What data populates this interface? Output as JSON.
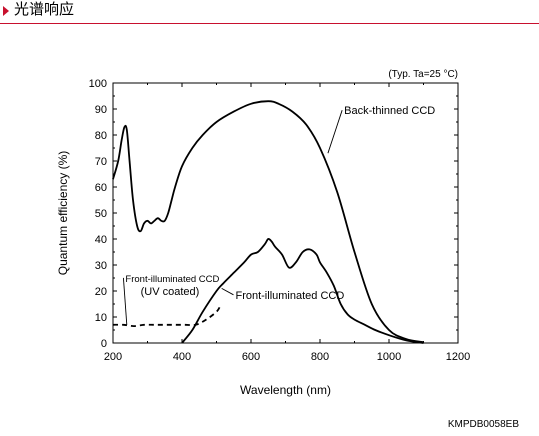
{
  "header": {
    "title": "光谱响应",
    "accent_color": "#c8102e"
  },
  "figure_code": "KMPDB0058EB",
  "chart_data": {
    "type": "line",
    "title": "",
    "condition_note": "(Typ. Ta=25 °C)",
    "xlabel": "Wavelength (nm)",
    "ylabel": "Quantum efficiency (%)",
    "xlim": [
      200,
      1200
    ],
    "ylim": [
      0,
      100
    ],
    "x_ticks": [
      200,
      400,
      600,
      800,
      1000,
      1200
    ],
    "y_ticks": [
      0,
      10,
      20,
      30,
      40,
      50,
      60,
      70,
      80,
      90,
      100
    ],
    "grid": false,
    "series": [
      {
        "name": "Back-thinned CCD",
        "style": "solid",
        "x": [
          200,
          215,
          225,
          233,
          240,
          248,
          258,
          270,
          280,
          290,
          300,
          310,
          320,
          330,
          340,
          350,
          360,
          370,
          380,
          400,
          430,
          460,
          500,
          550,
          600,
          650,
          680,
          720,
          760,
          800,
          850,
          900,
          950,
          1000,
          1050,
          1100
        ],
        "y": [
          63,
          70,
          78,
          83,
          82,
          70,
          55,
          45,
          43,
          46,
          47,
          46,
          47,
          48,
          47,
          47,
          50,
          55,
          60,
          68,
          75,
          80,
          85,
          89,
          92,
          93,
          92,
          89,
          84,
          75,
          58,
          35,
          15,
          5,
          1.5,
          0.3
        ]
      },
      {
        "name": "Front-illuminated CCD",
        "style": "solid",
        "x": [
          400,
          430,
          460,
          500,
          520,
          550,
          580,
          600,
          620,
          640,
          650,
          660,
          670,
          690,
          710,
          730,
          750,
          770,
          790,
          800,
          820,
          840,
          860,
          880,
          900,
          930,
          960,
          1000,
          1050,
          1100
        ],
        "y": [
          0,
          5,
          12,
          20,
          23,
          27,
          31,
          34,
          35,
          38,
          40,
          39,
          37,
          34,
          29,
          31,
          35,
          36,
          34,
          31,
          27,
          22,
          15,
          11,
          9,
          7,
          5,
          3,
          1,
          0
        ]
      },
      {
        "name": "Front-illuminated CCD (UV coated)",
        "style": "dashed",
        "x": [
          200,
          230,
          260,
          290,
          320,
          350,
          380,
          410,
          440,
          470,
          500,
          510
        ],
        "y": [
          7,
          7,
          6.5,
          7,
          7,
          7,
          7,
          7,
          7,
          9,
          12,
          14
        ]
      }
    ],
    "annotations": [
      {
        "text": "Back-thinned CCD",
        "x": 870,
        "y": 88,
        "point_x": 823,
        "point_y": 73
      },
      {
        "text": "Front-illuminated CCD",
        "x": 555,
        "y": 17,
        "point_x": 515,
        "point_y": 21
      },
      {
        "text": "Front-illuminated CCD",
        "x": 236,
        "y": 23.5,
        "point_x": 240,
        "point_y": 7,
        "small": true
      },
      {
        "text": "(UV coated)",
        "x": 280,
        "y": 18.5,
        "small": false
      }
    ]
  }
}
